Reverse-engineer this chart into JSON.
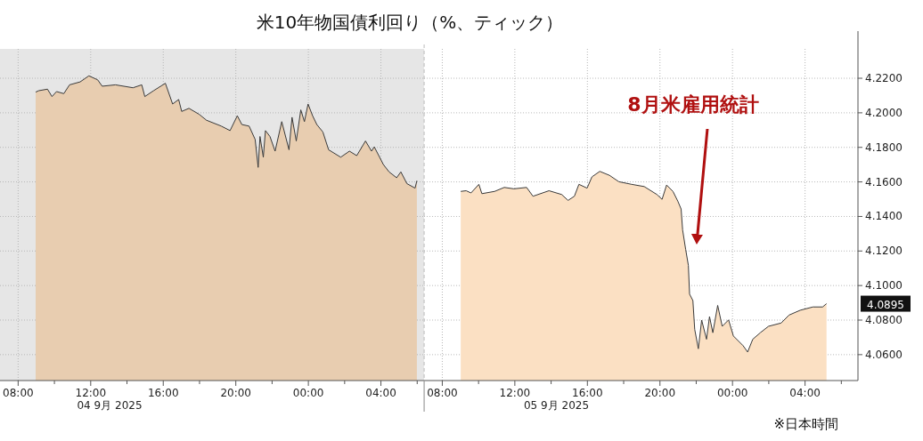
{
  "chart_data": [
    {
      "type": "area",
      "title": "米10年物国債利回り（%、ティック）",
      "xlabel": "04 9月 2025",
      "tick_labels": "x",
      "grid": true,
      "xlim": [
        "2025-09-04T07:00",
        "2025-09-05T06:23"
      ],
      "ylim": [
        4.045,
        4.237
      ],
      "xticks": [
        {
          "value": "2025-09-04T08:00",
          "label": "08:00"
        },
        {
          "value": "2025-09-04T10:00",
          "label": null
        },
        {
          "value": "2025-09-04T12:00",
          "label": "12:00"
        },
        {
          "value": "2025-09-04T14:00",
          "label": null
        },
        {
          "value": "2025-09-04T16:00",
          "label": "16:00"
        },
        {
          "value": "2025-09-04T18:00",
          "label": null
        },
        {
          "value": "2025-09-04T20:00",
          "label": "20:00"
        },
        {
          "value": "2025-09-04T22:00",
          "label": null
        },
        {
          "value": "2025-09-05T00:00",
          "label": "00:00"
        },
        {
          "value": "2025-09-05T02:00",
          "label": null
        },
        {
          "value": "2025-09-05T04:00",
          "label": "04:00"
        },
        {
          "value": "2025-09-05T06:00",
          "label": null
        }
      ],
      "yticks": [
        {
          "value": 4.06,
          "label": null
        },
        {
          "value": 4.08,
          "label": null
        },
        {
          "value": 4.1,
          "label": null
        },
        {
          "value": 4.12,
          "label": null
        },
        {
          "value": 4.14,
          "label": null
        },
        {
          "value": 4.16,
          "label": null
        },
        {
          "value": 4.18,
          "label": null
        },
        {
          "value": 4.2,
          "label": null
        },
        {
          "value": 4.22,
          "label": null
        }
      ],
      "bands": [
        {
          "axis": "x",
          "from": "2025-09-04T07:00",
          "to": "2025-09-05T06:23",
          "color": "#e6e6e6"
        }
      ],
      "x": [
        "2025-09-04T08:58",
        "2025-09-04T09:08",
        "2025-09-04T09:37",
        "2025-09-04T09:52",
        "2025-09-04T10:07",
        "2025-09-04T10:31",
        "2025-09-04T10:50",
        "2025-09-04T11:25",
        "2025-09-04T11:54",
        "2025-09-04T12:23",
        "2025-09-04T12:38",
        "2025-09-04T13:22",
        "2025-09-04T14:20",
        "2025-09-04T14:49",
        "2025-09-04T14:59",
        "2025-09-04T15:28",
        "2025-09-04T16:07",
        "2025-09-04T16:31",
        "2025-09-04T16:51",
        "2025-09-04T17:01",
        "2025-09-04T17:25",
        "2025-09-04T17:59",
        "2025-09-04T18:23",
        "2025-09-04T19:12",
        "2025-09-04T19:41",
        "2025-09-04T20:05",
        "2025-09-04T20:20",
        "2025-09-04T20:44",
        "2025-09-04T21:04",
        "2025-09-04T21:14",
        "2025-09-04T21:20",
        "2025-09-04T21:31",
        "2025-09-04T21:38",
        "2025-09-04T21:53",
        "2025-09-04T22:10",
        "2025-09-04T22:32",
        "2025-09-04T22:56",
        "2025-09-04T23:06",
        "2025-09-04T23:20",
        "2025-09-04T23:35",
        "2025-09-04T23:47",
        "2025-09-04T23:59",
        "2025-09-05T00:14",
        "2025-09-05T00:28",
        "2025-09-05T00:48",
        "2025-09-05T01:07",
        "2025-09-05T01:47",
        "2025-09-05T02:16",
        "2025-09-05T02:40",
        "2025-09-05T03:09",
        "2025-09-05T03:29",
        "2025-09-05T03:38",
        "2025-09-05T04:08",
        "2025-09-05T04:27",
        "2025-09-05T04:52",
        "2025-09-05T05:06",
        "2025-09-05T05:26",
        "2025-09-05T05:53",
        "2025-09-05T05:59"
      ],
      "series": [
        {
          "color": "#e8cdb0",
          "values": [
            4.212,
            4.2128,
            4.2137,
            4.2094,
            4.2123,
            4.2111,
            4.2162,
            4.2179,
            4.2214,
            4.2191,
            4.2154,
            4.2162,
            4.2145,
            4.2162,
            4.2094,
            4.2128,
            4.2171,
            4.2051,
            4.2077,
            4.2008,
            4.2026,
            4.1991,
            4.1957,
            4.1923,
            4.1897,
            4.1983,
            4.1932,
            4.1923,
            4.1846,
            4.1684,
            4.1863,
            4.1743,
            4.1897,
            4.1863,
            4.1778,
            4.1949,
            4.1786,
            4.1974,
            4.1837,
            4.2017,
            4.1949,
            4.2051,
            4.1983,
            4.1932,
            4.1889,
            4.1786,
            4.1743,
            4.1778,
            4.1752,
            4.1837,
            4.1778,
            4.1803,
            4.1701,
            4.1658,
            4.1624,
            4.1658,
            4.159,
            4.1564,
            4.1607
          ]
        }
      ]
    },
    {
      "type": "area",
      "xlabel": "05 9月 2025",
      "grid": true,
      "xlim": [
        "2025-09-05T07:00",
        "2025-09-06T06:55"
      ],
      "ylim": [
        4.045,
        4.237
      ],
      "xticks": [
        {
          "value": "2025-09-05T08:00",
          "label": "08:00"
        },
        {
          "value": "2025-09-05T10:00",
          "label": null
        },
        {
          "value": "2025-09-05T12:00",
          "label": "12:00"
        },
        {
          "value": "2025-09-05T14:00",
          "label": null
        },
        {
          "value": "2025-09-05T16:00",
          "label": "16:00"
        },
        {
          "value": "2025-09-05T18:00",
          "label": null
        },
        {
          "value": "2025-09-05T20:00",
          "label": "20:00"
        },
        {
          "value": "2025-09-05T22:00",
          "label": null
        },
        {
          "value": "2025-09-06T00:00",
          "label": "00:00"
        },
        {
          "value": "2025-09-06T02:00",
          "label": null
        },
        {
          "value": "2025-09-06T04:00",
          "label": "04:00"
        },
        {
          "value": "2025-09-06T06:00",
          "label": null
        }
      ],
      "yticks": [
        {
          "value": 4.06,
          "label": "4.0600"
        },
        {
          "value": 4.08,
          "label": "4.0800"
        },
        {
          "value": 4.1,
          "label": "4.1000"
        },
        {
          "value": 4.12,
          "label": "4.1200"
        },
        {
          "value": 4.14,
          "label": "4.1400"
        },
        {
          "value": 4.16,
          "label": "4.1600"
        },
        {
          "value": 4.18,
          "label": "4.1800"
        },
        {
          "value": 4.2,
          "label": "4.2000"
        },
        {
          "value": 4.22,
          "label": "4.2200"
        }
      ],
      "annotations": [
        "8月米雇用統計",
        "4.0895",
        "※日本時間"
      ],
      "x": [
        "2025-09-05T09:01",
        "2025-09-05T09:19",
        "2025-09-05T09:35",
        "2025-09-05T10:01",
        "2025-09-05T10:11",
        "2025-09-05T10:53",
        "2025-09-05T11:25",
        "2025-09-05T11:57",
        "2025-09-05T12:39",
        "2025-09-05T13:00",
        "2025-09-05T13:53",
        "2025-09-05T14:35",
        "2025-09-05T14:56",
        "2025-09-05T15:17",
        "2025-09-05T15:32",
        "2025-09-05T15:59",
        "2025-09-05T16:15",
        "2025-09-05T16:41",
        "2025-09-05T17:13",
        "2025-09-05T17:44",
        "2025-09-05T18:26",
        "2025-09-05T19:08",
        "2025-09-05T19:50",
        "2025-09-05T20:07",
        "2025-09-05T20:22",
        "2025-09-05T20:43",
        "2025-09-05T20:59",
        "2025-09-05T21:10",
        "2025-09-05T21:15",
        "2025-09-05T21:25",
        "2025-09-05T21:34",
        "2025-09-05T21:38",
        "2025-09-05T21:49",
        "2025-09-05T21:55",
        "2025-09-05T22:07",
        "2025-09-05T22:18",
        "2025-09-05T22:34",
        "2025-09-05T22:44",
        "2025-09-05T22:55",
        "2025-09-05T23:11",
        "2025-09-05T23:26",
        "2025-09-05T23:47",
        "2025-09-06T00:03",
        "2025-09-06T00:35",
        "2025-09-06T00:50",
        "2025-09-06T01:07",
        "2025-09-06T01:32",
        "2025-09-06T01:59",
        "2025-09-06T02:41",
        "2025-09-06T03:07",
        "2025-09-06T03:44",
        "2025-09-06T04:26",
        "2025-09-06T04:58",
        "2025-09-06T05:11"
      ],
      "series": [
        {
          "color": "#fbe0c3",
          "values": [
            4.1545,
            4.1549,
            4.1536,
            4.1586,
            4.1532,
            4.1545,
            4.1568,
            4.156,
            4.1568,
            4.1517,
            4.1549,
            4.1527,
            4.1493,
            4.1517,
            4.1586,
            4.1564,
            4.1629,
            4.1661,
            4.1638,
            4.1601,
            4.1586,
            4.1573,
            4.1527,
            4.1499,
            4.1582,
            4.1545,
            4.1489,
            4.1443,
            4.1322,
            4.121,
            4.1117,
            4.095,
            4.0913,
            4.0746,
            4.0634,
            4.08,
            4.0689,
            4.082,
            4.0727,
            4.0885,
            4.0764,
            4.0801,
            4.0708,
            4.0652,
            4.0615,
            4.0689,
            4.0727,
            4.0764,
            4.0783,
            4.0829,
            4.0857,
            4.0876,
            4.0876,
            4.0895
          ]
        }
      ]
    }
  ]
}
